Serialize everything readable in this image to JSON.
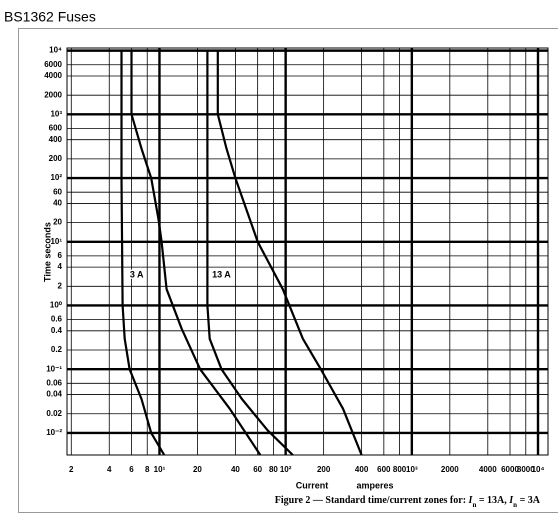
{
  "chart_data": {
    "type": "line",
    "title": "BS1362 Fuses",
    "y_label": "Time  seconds",
    "x_label": "Current",
    "x_unit_label": "amperes",
    "caption": [
      "Figure 2 — Standard time/current zones for: ",
      "I",
      "n",
      " = 13A, ",
      "I",
      "n",
      " = 3A"
    ],
    "annotations": [
      {
        "text": "3 A",
        "x": 6.6,
        "y": 3
      },
      {
        "text": "13 A",
        "x": 31,
        "y": 3
      }
    ],
    "log_x": true,
    "log_y": true,
    "grid": true,
    "xlim": [
      1.85,
      12000
    ],
    "ylim": [
      0.0045,
      11000
    ],
    "xticks": [
      2,
      4,
      6,
      8,
      {
        "value": 10,
        "label": "10¹"
      },
      20,
      40,
      60,
      80,
      {
        "value": 100,
        "label": "10²"
      },
      200,
      400,
      600,
      800,
      {
        "value": 1000,
        "label": "10³"
      },
      2000,
      4000,
      6000,
      8000,
      {
        "value": 10000,
        "label": "10⁴"
      }
    ],
    "yticks": [
      {
        "value": 10000,
        "label": "10⁴"
      },
      6000,
      4000,
      2000,
      {
        "value": 1000,
        "label": "10³"
      },
      600,
      400,
      200,
      {
        "value": 100,
        "label": "10²"
      },
      60,
      40,
      20,
      {
        "value": 10,
        "label": "10¹"
      },
      6,
      4,
      2,
      {
        "value": 1,
        "label": "10⁰"
      },
      0.6,
      0.4,
      0.2,
      {
        "value": 0.1,
        "label": "10⁻¹"
      },
      0.06,
      0.04,
      0.02,
      {
        "value": 0.01,
        "label": "10⁻²"
      }
    ],
    "series": [
      {
        "color": "#000000",
        "x": [
          5,
          5,
          5.1,
          5.3,
          5.8,
          7.2,
          8.6,
          10.9
        ],
        "values": [
          10000,
          100,
          1,
          0.3,
          0.1,
          0.034,
          0.01,
          0.0045
        ]
      },
      {
        "color": "#000000",
        "x": [
          6,
          6,
          7.2,
          8.6,
          9.8,
          10.4,
          11.4,
          15,
          21,
          36,
          63
        ],
        "values": [
          10000,
          1000,
          290,
          100,
          23,
          10,
          1.8,
          0.43,
          0.1,
          0.024,
          0.0045
        ]
      },
      {
        "color": "#000000",
        "x": [
          24,
          24,
          25,
          31,
          45,
          72,
          114
        ],
        "values": [
          10000,
          1,
          0.3,
          0.1,
          0.034,
          0.011,
          0.0045
        ]
      },
      {
        "color": "#000000",
        "x": [
          29,
          29,
          34,
          40,
          60,
          95,
          137,
          190,
          285,
          400
        ],
        "values": [
          10000,
          1000,
          290,
          100,
          10,
          1.8,
          0.3,
          0.1,
          0.024,
          0.0045
        ]
      }
    ]
  }
}
